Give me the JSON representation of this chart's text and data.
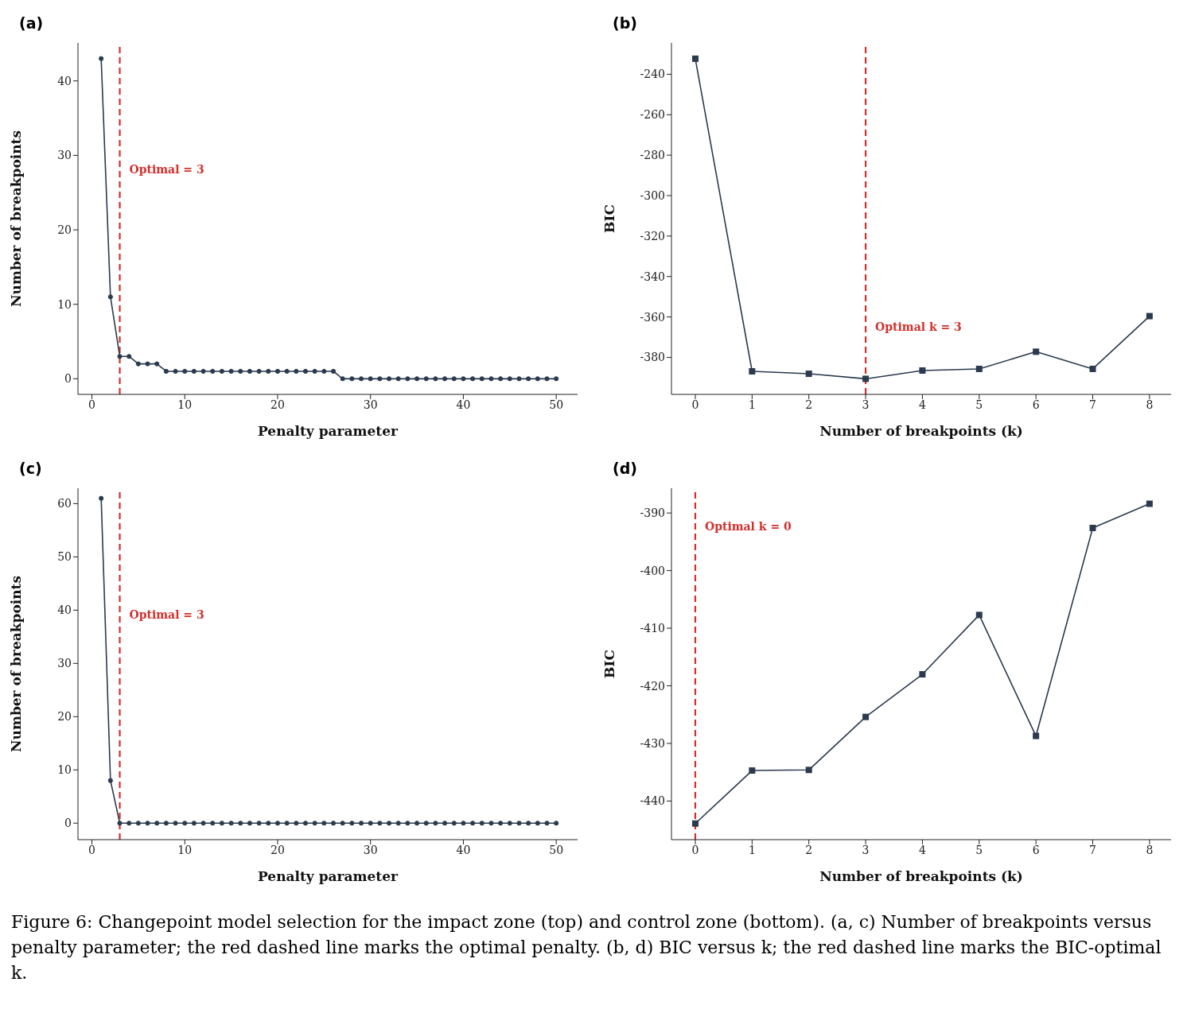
{
  "chart_data": [
    {
      "type": "line",
      "title": "(a)",
      "xlabel": "Penalty parameter",
      "ylabel": "Number of breakpoints",
      "x": [
        1,
        2,
        3,
        4,
        5,
        6,
        7,
        8,
        9,
        10,
        11,
        12,
        13,
        14,
        15,
        16,
        17,
        18,
        19,
        20,
        21,
        22,
        23,
        24,
        25,
        26,
        27,
        28,
        29,
        30,
        31,
        32,
        33,
        34,
        35,
        36,
        37,
        38,
        39,
        40,
        41,
        42,
        43,
        44,
        45,
        46,
        47,
        48,
        49,
        50
      ],
      "series": [
        {
          "color": "#2b3a4e",
          "values": [
            43,
            11,
            3,
            3,
            2,
            2,
            2,
            1,
            1,
            1,
            1,
            1,
            1,
            1,
            1,
            1,
            1,
            1,
            1,
            1,
            1,
            1,
            1,
            1,
            1,
            1,
            0,
            0,
            0,
            0,
            0,
            0,
            0,
            0,
            0,
            0,
            0,
            0,
            0,
            0,
            0,
            0,
            0,
            0,
            0,
            0,
            0,
            0,
            0,
            0
          ]
        }
      ],
      "xlim": [
        -1.5,
        52.3
      ],
      "xticks": [
        0,
        10,
        20,
        30,
        40,
        50
      ],
      "ylim": [
        -2.1,
        45.1
      ],
      "yticks": [
        0,
        10,
        20,
        30,
        40
      ],
      "marker": "circle",
      "grid": false,
      "legend": false,
      "ref_lines": [
        {
          "axis": "x",
          "value": 3,
          "label": "Optimal = 3",
          "color": "#d0312d",
          "line_style": "dashed"
        }
      ]
    },
    {
      "type": "line",
      "title": "(b)",
      "xlabel": "Number of breakpoints (k)",
      "ylabel": "BIC",
      "x": [
        0,
        1,
        2,
        3,
        4,
        5,
        6,
        7,
        8
      ],
      "series": [
        {
          "color": "#2b3a4e",
          "values": [
            -232.3,
            -386.9,
            -388.1,
            -390.6,
            -386.5,
            -385.7,
            -377.2,
            -385.7,
            -359.6
          ]
        }
      ],
      "xlim": [
        -0.42,
        8.38
      ],
      "xticks": [
        0,
        1,
        2,
        3,
        4,
        5,
        6,
        7,
        8
      ],
      "ylim": [
        -398.3,
        -224.5
      ],
      "yticks": [
        -380,
        -360,
        -340,
        -320,
        -300,
        -280,
        -260,
        -240
      ],
      "marker": "square",
      "grid": false,
      "legend": false,
      "ref_lines": [
        {
          "axis": "x",
          "value": 3,
          "label": "Optimal k = 3",
          "color": "#d0312d",
          "line_style": "dashed"
        }
      ]
    },
    {
      "type": "line",
      "title": "(c)",
      "xlabel": "Penalty parameter",
      "ylabel": "Number of breakpoints",
      "x": [
        1,
        2,
        3,
        4,
        5,
        6,
        7,
        8,
        9,
        10,
        11,
        12,
        13,
        14,
        15,
        16,
        17,
        18,
        19,
        20,
        21,
        22,
        23,
        24,
        25,
        26,
        27,
        28,
        29,
        30,
        31,
        32,
        33,
        34,
        35,
        36,
        37,
        38,
        39,
        40,
        41,
        42,
        43,
        44,
        45,
        46,
        47,
        48,
        49,
        50
      ],
      "series": [
        {
          "color": "#2b3a4e",
          "values": [
            61,
            8,
            0,
            0,
            0,
            0,
            0,
            0,
            0,
            0,
            0,
            0,
            0,
            0,
            0,
            0,
            0,
            0,
            0,
            0,
            0,
            0,
            0,
            0,
            0,
            0,
            0,
            0,
            0,
            0,
            0,
            0,
            0,
            0,
            0,
            0,
            0,
            0,
            0,
            0,
            0,
            0,
            0,
            0,
            0,
            0,
            0,
            0,
            0,
            0
          ]
        }
      ],
      "xlim": [
        -1.5,
        52.3
      ],
      "xticks": [
        0,
        10,
        20,
        30,
        40,
        50
      ],
      "ylim": [
        -3.1,
        62.9
      ],
      "yticks": [
        0,
        10,
        20,
        30,
        40,
        50,
        60
      ],
      "marker": "circle",
      "grid": false,
      "legend": false,
      "ref_lines": [
        {
          "axis": "x",
          "value": 3,
          "label": "Optimal = 3",
          "color": "#d0312d",
          "line_style": "dashed"
        }
      ]
    },
    {
      "type": "line",
      "title": "(d)",
      "xlabel": "Number of breakpoints (k)",
      "ylabel": "BIC",
      "x": [
        0,
        1,
        2,
        3,
        4,
        5,
        6,
        7,
        8
      ],
      "series": [
        {
          "color": "#2b3a4e",
          "values": [
            -443.9,
            -434.7,
            -434.6,
            -425.4,
            -418,
            -407.7,
            -428.7,
            -392.6,
            -388.4
          ]
        }
      ],
      "xlim": [
        -0.42,
        8.38
      ],
      "xticks": [
        0,
        1,
        2,
        3,
        4,
        5,
        6,
        7,
        8
      ],
      "ylim": [
        -446.7,
        -385.7
      ],
      "yticks": [
        -440,
        -430,
        -420,
        -410,
        -400,
        -390
      ],
      "marker": "square",
      "grid": false,
      "legend": false,
      "ref_lines": [
        {
          "axis": "x",
          "value": 0,
          "label": "Optimal k = 0",
          "color": "#d0312d",
          "line_style": "dashed"
        }
      ],
      "annotations": [
        "Figure 6: Changepoint model selection for the impact zone (top) and control zone (bottom). (a, c) Number of breakpoints versus penalty parameter; the red dashed line marks the optimal penalty. (b, d) BIC versus k; the red dashed line marks the BIC-optimal k."
      ]
    }
  ]
}
